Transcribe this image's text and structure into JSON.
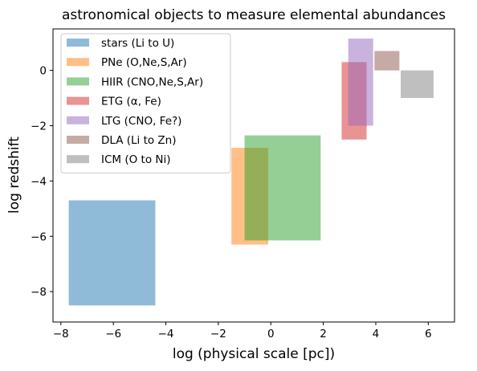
{
  "chart_data": {
    "type": "area",
    "title": "astronomical objects to measure elemental abundances",
    "xlabel": "log (physical scale [pc])",
    "ylabel": "log redshift",
    "xlim": [
      -8.3,
      7.0
    ],
    "ylim": [
      -9.1,
      1.5
    ],
    "xticks": [
      -8,
      -6,
      -4,
      -2,
      0,
      2,
      4,
      6
    ],
    "yticks": [
      -8,
      -6,
      -4,
      -2,
      0
    ],
    "legend_position": "upper-left",
    "grid": false,
    "series": [
      {
        "name": "stars (Li to U)",
        "color": "#1f77b4",
        "x": [
          -7.7,
          -4.4
        ],
        "y": [
          -8.5,
          -4.7
        ]
      },
      {
        "name": "PNe (O,Ne,S,Ar)",
        "color": "#ff7f0e",
        "x": [
          -1.5,
          -0.1
        ],
        "y": [
          -6.3,
          -2.8
        ]
      },
      {
        "name": "HIIR (CNO,Ne,S,Ar)",
        "color": "#2ca02c",
        "x": [
          -1.0,
          1.9
        ],
        "y": [
          -6.15,
          -2.35
        ]
      },
      {
        "name": "ETG (α, Fe)",
        "color": "#d62728",
        "x": [
          2.7,
          3.65
        ],
        "y": [
          -2.5,
          0.3
        ]
      },
      {
        "name": "LTG (CNO, Fe?)",
        "color": "#9467bd",
        "x": [
          2.95,
          3.9
        ],
        "y": [
          -2.0,
          1.15
        ]
      },
      {
        "name": "DLA (Li to Zn)",
        "color": "#8c564b",
        "x": [
          3.95,
          4.9
        ],
        "y": [
          0.0,
          0.7
        ]
      },
      {
        "name": "ICM (O to Ni)",
        "color": "#7f7f7f",
        "x": [
          4.95,
          6.2
        ],
        "y": [
          -1.0,
          0.0
        ]
      }
    ]
  }
}
